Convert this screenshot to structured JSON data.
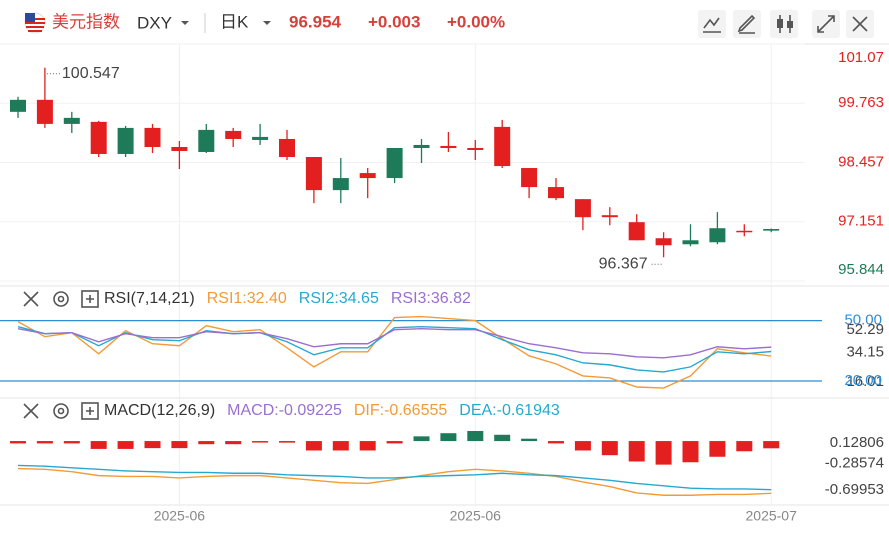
{
  "header": {
    "name": "美元指数",
    "symbol": "DXY",
    "period": "日K",
    "price": "96.954",
    "change": "+0.003",
    "change_pct": "+0.00%"
  },
  "chart_data": [
    {
      "type": "candlestick",
      "rise_color": "#e41f1f",
      "fall_color": "#1e7b5a",
      "grid": true,
      "categories": [
        null,
        null,
        null,
        null,
        null,
        null,
        "2025-06",
        null,
        null,
        null,
        null,
        null,
        null,
        null,
        null,
        null,
        null,
        "2025-06",
        null,
        null,
        null,
        null,
        null,
        null,
        null,
        null,
        null,
        null,
        "2025-07"
      ],
      "open": [
        99.839,
        99.308,
        99.441,
        98.645,
        99.22,
        98.799,
        98.711,
        99.176,
        98.976,
        99.021,
        98.578,
        97.848,
        98.114,
        98.114,
        98.777,
        98.844,
        98.777,
        98.733,
        98.379,
        97.915,
        97.671,
        97.251,
        97.251,
        96.742,
        96.632,
        96.742,
        97.008,
        96.919,
        96.99
      ],
      "high": [
        99.906,
        100.547,
        99.574,
        99.375,
        99.264,
        99.308,
        98.932,
        99.308,
        99.22,
        99.308,
        99.176,
        98.578,
        98.556,
        98.335,
        98.777,
        98.976,
        99.131,
        98.954,
        99.397,
        98.335,
        98.114,
        97.649,
        97.472,
        97.317,
        96.919,
        97.096,
        97.362,
        97.096,
        97.0
      ],
      "low": [
        99.441,
        99.22,
        99.109,
        98.578,
        98.578,
        98.667,
        98.313,
        98.667,
        98.799,
        98.844,
        98.512,
        97.561,
        97.561,
        97.671,
        98.003,
        98.446,
        98.689,
        98.512,
        98.335,
        97.671,
        97.627,
        96.964,
        97.074,
        96.742,
        96.367,
        96.61,
        96.654,
        96.831,
        96.92
      ],
      "close": [
        99.574,
        99.839,
        99.308,
        99.353,
        98.645,
        99.22,
        98.799,
        98.689,
        99.153,
        98.954,
        98.976,
        98.578,
        97.848,
        98.224,
        98.114,
        98.777,
        98.822,
        98.777,
        99.242,
        98.335,
        97.915,
        97.649,
        97.295,
        97.141,
        96.787,
        96.654,
        96.698,
        96.951,
        96.954
      ],
      "ylim": [
        95.844,
        101.07
      ],
      "yticks": [
        101.07,
        99.763,
        98.457,
        97.151,
        95.844
      ]
    },
    {
      "type": "line",
      "title": "RSI(7,14,21)",
      "ylim": [
        16.01,
        52.29
      ],
      "yticks": [
        52.29,
        34.15,
        16.01
      ],
      "ref_color": "#2a8fd6",
      "ref_lines": [
        {
          "value": 50,
          "label": "50.00"
        },
        {
          "value": 20,
          "label": "20.00"
        }
      ],
      "series": [
        {
          "name": "RSI1:32.40",
          "color": "#f29b38",
          "values": [
            49.5,
            42.0,
            44.0,
            33.5,
            45.0,
            38.5,
            37.5,
            47.5,
            44.5,
            45.5,
            36.5,
            27.0,
            34.5,
            34.5,
            51.5,
            52.0,
            51.0,
            50.0,
            41.0,
            32.5,
            28.5,
            22.5,
            21.5,
            17.0,
            16.5,
            22.5,
            36.0,
            34.0,
            32.4
          ]
        },
        {
          "name": "RSI2:34.65",
          "color": "#27a9cf",
          "values": [
            47.0,
            43.5,
            44.0,
            37.5,
            44.0,
            40.5,
            40.0,
            45.0,
            43.5,
            44.0,
            39.5,
            33.0,
            36.5,
            36.5,
            46.5,
            47.0,
            46.5,
            46.0,
            40.5,
            35.5,
            33.0,
            29.0,
            28.0,
            25.5,
            24.5,
            27.0,
            34.5,
            33.5,
            34.65
          ]
        },
        {
          "name": "RSI3:36.82",
          "color": "#9a6fd0",
          "values": [
            46.0,
            43.5,
            44.0,
            39.5,
            43.5,
            41.5,
            41.5,
            44.5,
            43.5,
            44.0,
            41.0,
            37.0,
            38.5,
            38.5,
            45.5,
            46.0,
            45.5,
            45.5,
            42.0,
            38.5,
            36.5,
            34.0,
            33.5,
            32.0,
            31.5,
            33.0,
            37.0,
            36.0,
            36.82
          ]
        }
      ]
    },
    {
      "type": "macd",
      "title": "MACD(12,26,9)",
      "ylim": [
        -0.69953,
        0.12806
      ],
      "yticks": [
        0.12806,
        -0.28574,
        -0.69953
      ],
      "series": [
        {
          "name": "MACD:-0.09225",
          "kind": "bar",
          "color": "#9a6fd0",
          "positive_color": "#1e7b5a",
          "negative_color": "#e41f1f",
          "values": [
            -0.03,
            -0.03,
            -0.03,
            -0.1,
            -0.1,
            -0.09,
            -0.09,
            -0.04,
            -0.04,
            -0.01,
            -0.02,
            -0.12,
            -0.12,
            -0.12,
            -0.03,
            0.06,
            0.1,
            0.12806,
            0.08,
            0.03,
            -0.03,
            -0.12,
            -0.18,
            -0.26,
            -0.3,
            -0.27,
            -0.2,
            -0.13,
            -0.09225
          ]
        },
        {
          "name": "DIF:-0.66555",
          "kind": "line",
          "color": "#f29b38",
          "values": [
            -0.35,
            -0.36,
            -0.39,
            -0.44,
            -0.45,
            -0.45,
            -0.47,
            -0.45,
            -0.44,
            -0.44,
            -0.47,
            -0.5,
            -0.53,
            -0.54,
            -0.49,
            -0.44,
            -0.39,
            -0.36,
            -0.38,
            -0.41,
            -0.45,
            -0.52,
            -0.58,
            -0.66,
            -0.69,
            -0.69,
            -0.68,
            -0.68,
            -0.66555
          ]
        },
        {
          "name": "DEA:-0.61943",
          "kind": "line",
          "color": "#27a9cf",
          "values": [
            -0.31,
            -0.32,
            -0.34,
            -0.36,
            -0.38,
            -0.39,
            -0.4,
            -0.4,
            -0.41,
            -0.41,
            -0.43,
            -0.44,
            -0.45,
            -0.47,
            -0.47,
            -0.45,
            -0.44,
            -0.43,
            -0.41,
            -0.43,
            -0.44,
            -0.47,
            -0.5,
            -0.54,
            -0.57,
            -0.6,
            -0.61,
            -0.61,
            -0.61943
          ]
        }
      ]
    }
  ]
}
